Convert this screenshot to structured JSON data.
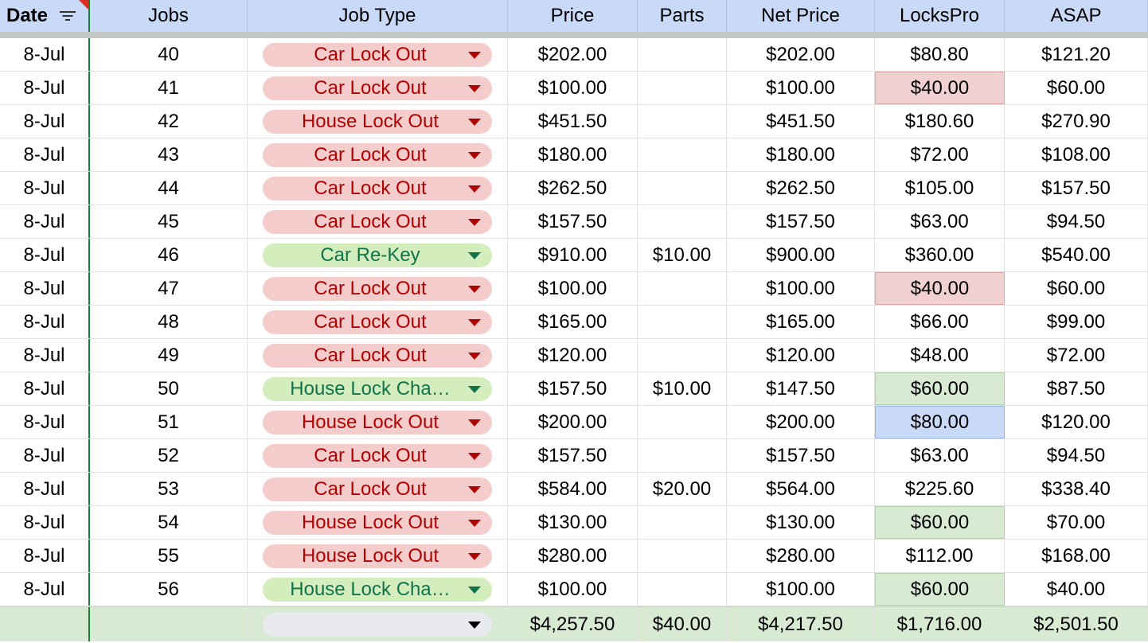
{
  "headers": [
    "Date",
    "Jobs",
    "Job Type",
    "Price",
    "Parts",
    "Net Price",
    "LocksPro",
    "ASAP"
  ],
  "colors": {
    "header_bg": "#c9daf8",
    "chip_red_bg": "#f4cccc",
    "chip_red_text": "#b10202",
    "chip_green_bg": "#d4edbc",
    "chip_green_text": "#11734b",
    "total_bg": "#d9ead3"
  },
  "rows": [
    {
      "date": "8-Jul",
      "jobs": "40",
      "job_type": "Car Lock Out",
      "chip": "red",
      "price": "$202.00",
      "parts": "",
      "net": "$202.00",
      "lockspro": "$80.80",
      "lp_hl": "",
      "asap": "$121.20"
    },
    {
      "date": "8-Jul",
      "jobs": "41",
      "job_type": "Car Lock Out",
      "chip": "red",
      "price": "$100.00",
      "parts": "",
      "net": "$100.00",
      "lockspro": "$40.00",
      "lp_hl": "red",
      "asap": "$60.00"
    },
    {
      "date": "8-Jul",
      "jobs": "42",
      "job_type": "House Lock Out",
      "chip": "red",
      "price": "$451.50",
      "parts": "",
      "net": "$451.50",
      "lockspro": "$180.60",
      "lp_hl": "",
      "asap": "$270.90"
    },
    {
      "date": "8-Jul",
      "jobs": "43",
      "job_type": "Car Lock Out",
      "chip": "red",
      "price": "$180.00",
      "parts": "",
      "net": "$180.00",
      "lockspro": "$72.00",
      "lp_hl": "",
      "asap": "$108.00"
    },
    {
      "date": "8-Jul",
      "jobs": "44",
      "job_type": "Car Lock Out",
      "chip": "red",
      "price": "$262.50",
      "parts": "",
      "net": "$262.50",
      "lockspro": "$105.00",
      "lp_hl": "",
      "asap": "$157.50"
    },
    {
      "date": "8-Jul",
      "jobs": "45",
      "job_type": "Car Lock Out",
      "chip": "red",
      "price": "$157.50",
      "parts": "",
      "net": "$157.50",
      "lockspro": "$63.00",
      "lp_hl": "",
      "asap": "$94.50"
    },
    {
      "date": "8-Jul",
      "jobs": "46",
      "job_type": "Car Re-Key",
      "chip": "green",
      "price": "$910.00",
      "parts": "$10.00",
      "net": "$900.00",
      "lockspro": "$360.00",
      "lp_hl": "",
      "asap": "$540.00"
    },
    {
      "date": "8-Jul",
      "jobs": "47",
      "job_type": "Car Lock Out",
      "chip": "red",
      "price": "$100.00",
      "parts": "",
      "net": "$100.00",
      "lockspro": "$40.00",
      "lp_hl": "red",
      "asap": "$60.00"
    },
    {
      "date": "8-Jul",
      "jobs": "48",
      "job_type": "Car Lock Out",
      "chip": "red",
      "price": "$165.00",
      "parts": "",
      "net": "$165.00",
      "lockspro": "$66.00",
      "lp_hl": "",
      "asap": "$99.00"
    },
    {
      "date": "8-Jul",
      "jobs": "49",
      "job_type": "Car Lock Out",
      "chip": "red",
      "price": "$120.00",
      "parts": "",
      "net": "$120.00",
      "lockspro": "$48.00",
      "lp_hl": "",
      "asap": "$72.00"
    },
    {
      "date": "8-Jul",
      "jobs": "50",
      "job_type": "House Lock Cha…",
      "chip": "green",
      "price": "$157.50",
      "parts": "$10.00",
      "net": "$147.50",
      "lockspro": "$60.00",
      "lp_hl": "green",
      "asap": "$87.50"
    },
    {
      "date": "8-Jul",
      "jobs": "51",
      "job_type": "House Lock Out",
      "chip": "red",
      "price": "$200.00",
      "parts": "",
      "net": "$200.00",
      "lockspro": "$80.00",
      "lp_hl": "blue",
      "asap": "$120.00"
    },
    {
      "date": "8-Jul",
      "jobs": "52",
      "job_type": "Car Lock Out",
      "chip": "red",
      "price": "$157.50",
      "parts": "",
      "net": "$157.50",
      "lockspro": "$63.00",
      "lp_hl": "",
      "asap": "$94.50"
    },
    {
      "date": "8-Jul",
      "jobs": "53",
      "job_type": "Car Lock Out",
      "chip": "red",
      "price": "$584.00",
      "parts": "$20.00",
      "net": "$564.00",
      "lockspro": "$225.60",
      "lp_hl": "",
      "asap": "$338.40"
    },
    {
      "date": "8-Jul",
      "jobs": "54",
      "job_type": "House Lock Out",
      "chip": "red",
      "price": "$130.00",
      "parts": "",
      "net": "$130.00",
      "lockspro": "$60.00",
      "lp_hl": "green",
      "asap": "$70.00"
    },
    {
      "date": "8-Jul",
      "jobs": "55",
      "job_type": "House Lock Out",
      "chip": "red",
      "price": "$280.00",
      "parts": "",
      "net": "$280.00",
      "lockspro": "$112.00",
      "lp_hl": "",
      "asap": "$168.00"
    },
    {
      "date": "8-Jul",
      "jobs": "56",
      "job_type": "House Lock Cha…",
      "chip": "green",
      "price": "$100.00",
      "parts": "",
      "net": "$100.00",
      "lockspro": "$60.00",
      "lp_hl": "green",
      "asap": "$40.00"
    }
  ],
  "totals": {
    "date": "",
    "jobs": "",
    "job_type": "",
    "price": "$4,257.50",
    "parts": "$40.00",
    "net": "$4,217.50",
    "lockspro": "$1,716.00",
    "asap": "$2,501.50"
  }
}
